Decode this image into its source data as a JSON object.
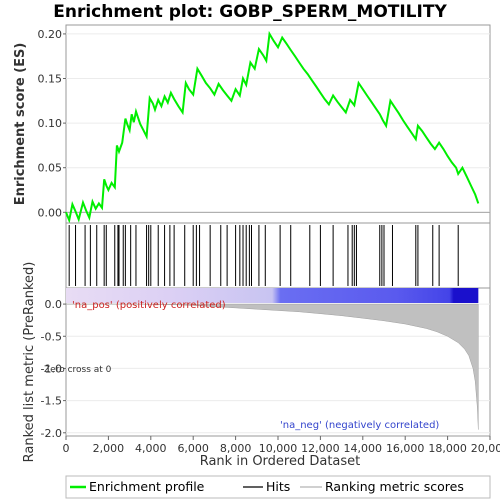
{
  "chart_data": [
    {
      "type": "line",
      "panel": "enrichment-profile",
      "title": "Enrichment plot: GOBP_SPERM_MOTILITY",
      "ylabel": "Enrichment score (ES)",
      "ylim": [
        -0.012,
        0.21
      ],
      "yticks": [
        0.0,
        0.05,
        0.1,
        0.15,
        0.2
      ],
      "ytick_labels": [
        "0.00",
        "0.05",
        "0.10",
        "0.15",
        "0.20"
      ],
      "xlim": [
        0,
        20000
      ],
      "series": [
        {
          "name": "Enrichment profile",
          "color": "#00ee00",
          "x": [
            0,
            150,
            300,
            450,
            600,
            800,
            950,
            1100,
            1250,
            1400,
            1550,
            1700,
            1800,
            1900,
            2000,
            2150,
            2300,
            2400,
            2500,
            2650,
            2800,
            2900,
            3000,
            3100,
            3200,
            3300,
            3400,
            3500,
            3650,
            3800,
            3950,
            4100,
            4200,
            4350,
            4500,
            4650,
            4800,
            4950,
            5100,
            5300,
            5500,
            5650,
            5800,
            6000,
            6200,
            6400,
            6600,
            6800,
            7000,
            7200,
            7400,
            7600,
            7800,
            8000,
            8200,
            8350,
            8500,
            8700,
            8900,
            9100,
            9300,
            9450,
            9600,
            9800,
            10000,
            10200,
            10400,
            10600,
            10800,
            11000,
            11200,
            11400,
            11600,
            11800,
            12000,
            12200,
            12400,
            12600,
            12800,
            13000,
            13200,
            13400,
            13600,
            13800,
            14000,
            14200,
            14400,
            14600,
            14800,
            14950,
            15100,
            15300,
            15500,
            15700,
            15900,
            16100,
            16300,
            16500,
            16600,
            16800,
            17000,
            17200,
            17400,
            17600,
            17800,
            18000,
            18200,
            18400,
            18500,
            18700,
            18900,
            19100,
            19300,
            19450
          ],
          "y": [
            0.0,
            -0.009,
            0.009,
            0.001,
            -0.008,
            0.011,
            0.002,
            -0.006,
            0.012,
            0.004,
            0.01,
            0.005,
            0.037,
            0.03,
            0.025,
            0.033,
            0.028,
            0.075,
            0.068,
            0.078,
            0.105,
            0.098,
            0.092,
            0.11,
            0.101,
            0.113,
            0.106,
            0.099,
            0.092,
            0.085,
            0.128,
            0.122,
            0.115,
            0.126,
            0.119,
            0.13,
            0.123,
            0.134,
            0.127,
            0.119,
            0.112,
            0.145,
            0.138,
            0.132,
            0.161,
            0.153,
            0.145,
            0.139,
            0.132,
            0.144,
            0.137,
            0.131,
            0.125,
            0.138,
            0.131,
            0.15,
            0.143,
            0.168,
            0.161,
            0.183,
            0.176,
            0.17,
            0.2,
            0.192,
            0.185,
            0.196,
            0.189,
            0.182,
            0.175,
            0.168,
            0.161,
            0.155,
            0.148,
            0.141,
            0.134,
            0.127,
            0.121,
            0.131,
            0.124,
            0.118,
            0.112,
            0.126,
            0.12,
            0.145,
            0.138,
            0.131,
            0.124,
            0.117,
            0.11,
            0.103,
            0.097,
            0.125,
            0.118,
            0.111,
            0.103,
            0.096,
            0.089,
            0.082,
            0.097,
            0.091,
            0.084,
            0.077,
            0.071,
            0.078,
            0.071,
            0.063,
            0.056,
            0.05,
            0.043,
            0.05,
            0.04,
            0.03,
            0.02,
            0.01
          ]
        }
      ]
    },
    {
      "type": "hits",
      "panel": "hits",
      "name": "Hits",
      "color": "#000000",
      "positions": [
        150,
        450,
        900,
        1150,
        1450,
        1800,
        1900,
        2300,
        2450,
        2500,
        2700,
        2800,
        3050,
        3300,
        3800,
        3900,
        4000,
        4350,
        4650,
        4900,
        5100,
        5600,
        6000,
        6150,
        6300,
        6800,
        7300,
        7600,
        8000,
        8200,
        8350,
        8500,
        8650,
        8750,
        9100,
        9400,
        10100,
        10600,
        11500,
        12000,
        12600,
        13300,
        13500,
        13600,
        13700,
        14800,
        14900,
        15000,
        15400,
        16500,
        16600,
        17300,
        17600,
        18500
      ]
    },
    {
      "type": "area",
      "panel": "ranked-list-metric",
      "ylabel": "Ranked list metric (PreRanked)",
      "xlabel": "Rank in Ordered Dataset",
      "ylim": [
        -2.05,
        0.25
      ],
      "yticks": [
        0.0,
        -0.5,
        -1.0,
        -1.5,
        -2.0
      ],
      "ytick_labels": [
        "0.0",
        "-0.5",
        "-1.0",
        "-1.5",
        "-2.0"
      ],
      "xlim": [
        0,
        20000
      ],
      "xticks": [
        0,
        2000,
        4000,
        6000,
        8000,
        10000,
        12000,
        14000,
        16000,
        18000,
        20000
      ],
      "xtick_labels": [
        "0",
        "2,000",
        "4,000",
        "6,000",
        "8,000",
        "10,000",
        "12,000",
        "14,000",
        "16,000",
        "18,000",
        "20,000"
      ],
      "series": [
        {
          "name": "Ranking metric scores",
          "color": "#c0c0c0",
          "x": [
            0,
            3000,
            5000,
            6000,
            7000,
            8000,
            9000,
            10000,
            11000,
            12000,
            13000,
            14000,
            15000,
            16000,
            17000,
            17500,
            18000,
            18500,
            18800,
            19000,
            19200,
            19300,
            19400,
            19450
          ],
          "y": [
            0.0,
            0.0,
            -0.01,
            -0.02,
            -0.04,
            -0.06,
            -0.08,
            -0.1,
            -0.12,
            -0.15,
            -0.18,
            -0.22,
            -0.26,
            -0.31,
            -0.38,
            -0.43,
            -0.5,
            -0.6,
            -0.7,
            -0.8,
            -1.0,
            -1.2,
            -1.6,
            -1.95
          ]
        }
      ],
      "annotations": {
        "positive": "'na_pos' (positively correlated)",
        "negative": "'na_neg' (negatively correlated)",
        "zero_cross": "Zero cross at 0"
      }
    }
  ],
  "legend": {
    "placement": "bottom",
    "entries": [
      "Enrichment profile",
      "Hits",
      "Ranking metric scores"
    ]
  }
}
